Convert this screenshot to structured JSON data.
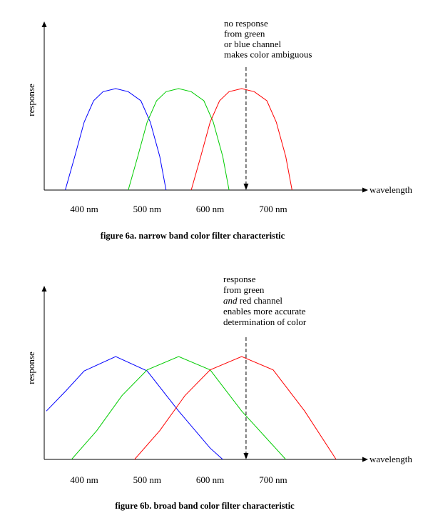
{
  "chart_data": [
    {
      "type": "line",
      "caption": "figure 6a.  narrow band color filter characteristic",
      "ylabel": "response",
      "xlabel": "wavelength",
      "x_ticks": [
        "400 nm",
        "500 nm",
        "600 nm",
        "700 nm"
      ],
      "x_tick_values": [
        400,
        500,
        600,
        700
      ],
      "xlim": [
        340,
        780
      ],
      "ylim": [
        0,
        1
      ],
      "annotation": {
        "lines": [
          "no response",
          "from green",
          "or  blue channel",
          "makes color ambiguous"
        ],
        "italic_line": null,
        "arrow_x": 657
      },
      "series": [
        {
          "color": "#0000ff",
          "x": [
            370,
            385,
            400,
            415,
            430,
            450,
            470,
            490,
            505,
            520,
            530
          ],
          "y": [
            0,
            0.33,
            0.67,
            0.88,
            0.97,
            1.0,
            0.97,
            0.88,
            0.67,
            0.33,
            0
          ]
        },
        {
          "color": "#00cc00",
          "x": [
            470,
            485,
            500,
            515,
            530,
            550,
            570,
            590,
            605,
            620,
            630
          ],
          "y": [
            0,
            0.33,
            0.67,
            0.88,
            0.97,
            1.0,
            0.97,
            0.88,
            0.67,
            0.33,
            0
          ]
        },
        {
          "color": "#ff0000",
          "x": [
            570,
            585,
            600,
            615,
            630,
            650,
            670,
            690,
            705,
            720,
            730
          ],
          "y": [
            0,
            0.33,
            0.67,
            0.88,
            0.97,
            1.0,
            0.97,
            0.88,
            0.67,
            0.33,
            0
          ]
        }
      ]
    },
    {
      "type": "line",
      "caption": "figure 6b.  broad band color filter characteristic",
      "ylabel": "response",
      "xlabel": "wavelength",
      "x_ticks": [
        "400 nm",
        "500 nm",
        "600 nm",
        "700 nm"
      ],
      "x_tick_values": [
        400,
        500,
        600,
        700
      ],
      "xlim": [
        340,
        780
      ],
      "ylim": [
        0,
        1
      ],
      "annotation": {
        "lines": [
          "response",
          "from green",
          "and  red channel",
          "enables more accurate",
          "determination of color"
        ],
        "italic_line": 2,
        "arrow_x": 657
      },
      "series": [
        {
          "color": "#0000ff",
          "x": [
            340,
            370,
            400,
            450,
            500,
            550,
            600,
            620
          ],
          "y": [
            0.47,
            0.66,
            0.86,
            1.0,
            0.86,
            0.47,
            0.11,
            0
          ]
        },
        {
          "color": "#00cc00",
          "x": [
            380,
            420,
            460,
            500,
            550,
            600,
            650,
            720
          ],
          "y": [
            0,
            0.28,
            0.62,
            0.87,
            1.0,
            0.87,
            0.47,
            0
          ]
        },
        {
          "color": "#ff0000",
          "x": [
            480,
            520,
            560,
            600,
            650,
            700,
            750,
            800
          ],
          "y": [
            0,
            0.28,
            0.62,
            0.87,
            1.0,
            0.87,
            0.47,
            0
          ]
        }
      ]
    }
  ]
}
